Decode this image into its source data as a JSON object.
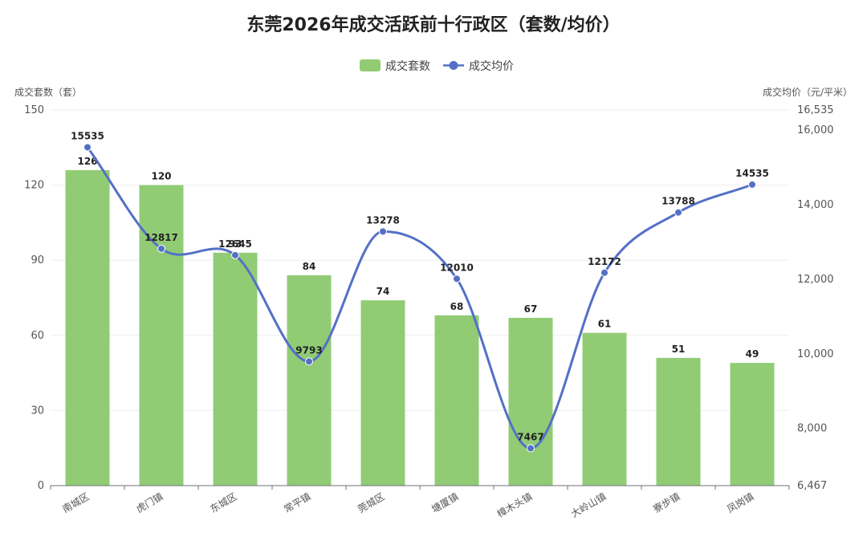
{
  "chart_data": {
    "type": "bar",
    "title": "东莞2026年成交活跃前十行政区（套数/均价）",
    "categories": [
      "南城区",
      "虎门镇",
      "东城区",
      "常平镇",
      "莞城区",
      "塘厦镇",
      "樟木头镇",
      "大岭山镇",
      "寮步镇",
      "凤岗镇"
    ],
    "series": [
      {
        "name": "成交套数",
        "type": "bar",
        "axis": "left",
        "color": "#91cc75",
        "values": [
          126,
          120,
          93,
          84,
          74,
          68,
          67,
          61,
          51,
          49
        ],
        "labels": [
          "126",
          "120",
          "93",
          "84",
          "74",
          "68",
          "67",
          "61",
          "51",
          "49"
        ]
      },
      {
        "name": "成交均价",
        "type": "line",
        "smooth": true,
        "axis": "right",
        "color": "#5470c6",
        "values": [
          15535,
          12817,
          12645,
          9793,
          13278,
          12010,
          7467,
          12172,
          13788,
          14535
        ],
        "labels": [
          "15535",
          "12817",
          "12645",
          "9793",
          "13278",
          "12010",
          "7467",
          "12172",
          "13788",
          "14535"
        ]
      }
    ],
    "y_left": {
      "label": "成交套数（套）",
      "ylim": [
        0,
        150
      ],
      "ticks": [
        0,
        30,
        60,
        90,
        120,
        150
      ],
      "tick_labels": [
        "0",
        "30",
        "60",
        "90",
        "120",
        "150"
      ]
    },
    "y_right": {
      "label": "成交均价（元/平米）",
      "ylim": [
        6467,
        16535
      ],
      "ticks": [
        6467,
        8000,
        10000,
        12000,
        14000,
        16000,
        16535
      ],
      "tick_labels": [
        "6,467",
        "8,000",
        "10,000",
        "12,000",
        "14,000",
        "16,000",
        "16,535"
      ]
    },
    "legend_position": "top-center",
    "grid": true
  }
}
